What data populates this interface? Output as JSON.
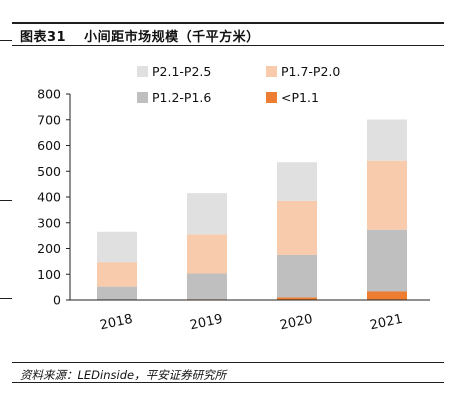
{
  "figure": {
    "number": "图表31",
    "title": "小间距市场规模（千平方米）",
    "source": "资料来源：LEDinside，平安证券研究所"
  },
  "chart_data": {
    "type": "bar",
    "stacked": true,
    "categories": [
      "2018",
      "2019",
      "2020",
      "2021"
    ],
    "series": [
      {
        "name": "<P1.1",
        "color": "#ED7D31",
        "values": [
          0,
          3,
          10,
          33
        ]
      },
      {
        "name": "P1.2-P1.6",
        "color": "#BFBFBF",
        "values": [
          52,
          100,
          165,
          240
        ]
      },
      {
        "name": "P1.7-P2.0",
        "color": "#F8CBAD",
        "values": [
          95,
          152,
          210,
          268
        ]
      },
      {
        "name": "P2.1-P2.5",
        "color": "#E0E0E0",
        "values": [
          118,
          160,
          150,
          160
        ]
      }
    ],
    "ylim": [
      0,
      800
    ],
    "yticks": [
      0,
      100,
      200,
      300,
      400,
      500,
      600,
      700,
      800
    ],
    "legend": {
      "position": "top",
      "order": [
        "P2.1-P2.5",
        "P1.7-P2.0",
        "P1.2-P1.6",
        "<P1.1"
      ]
    },
    "grid": false
  }
}
